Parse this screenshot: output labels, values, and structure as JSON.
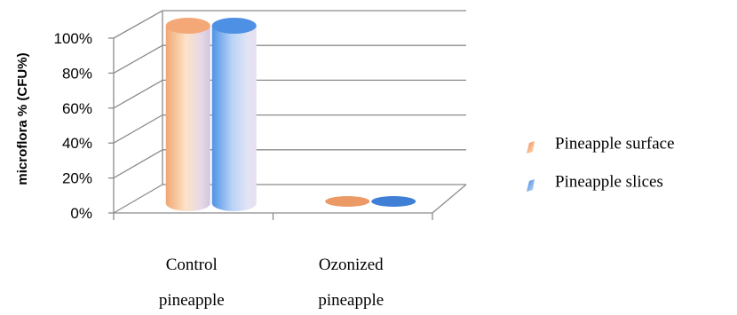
{
  "chart_data": {
    "type": "bar",
    "style": "3d-cylinder",
    "categories": [
      [
        "Control",
        "pineapple"
      ],
      [
        "Ozonized",
        "pineapple"
      ]
    ],
    "series": [
      {
        "name": "Pineapple surface",
        "values": [
          100,
          0
        ],
        "color": "#f4a460"
      },
      {
        "name": "Pineapple slices",
        "values": [
          100,
          0
        ],
        "color": "#3f8ae0"
      }
    ],
    "ylabel": "microflora % (CFU%)",
    "xlabel": "",
    "ylim": [
      0,
      100
    ],
    "yticks": [
      "0%",
      "20%",
      "40%",
      "60%",
      "80%",
      "100%"
    ],
    "grid": true,
    "legend_position": "right"
  }
}
